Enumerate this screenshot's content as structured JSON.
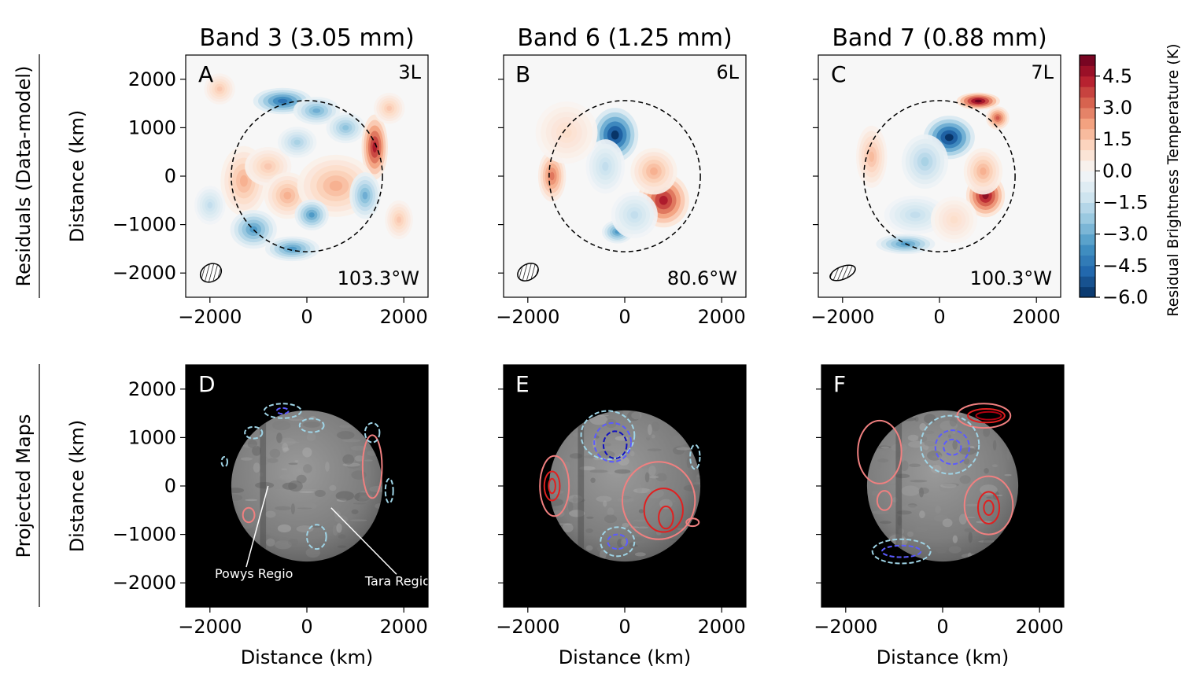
{
  "row_labels": [
    "Residuals (Data-model)",
    "Projected Maps"
  ],
  "colorbar": {
    "label": "Residual Brightness Temperature (K)",
    "ticks": [
      4.5,
      3.0,
      1.5,
      0.0,
      -1.5,
      -3.0,
      -4.5,
      -6.0
    ],
    "tick_labels": [
      "4.5",
      "3.0",
      "1.5",
      "0.0",
      "−1.5",
      "−3.0",
      "−4.5",
      "−6.0"
    ],
    "range": [
      -6.0,
      5.5
    ],
    "colors": [
      "#053061",
      "#2166ac",
      "#4393c3",
      "#92c5de",
      "#d1e5f0",
      "#f7f7f7",
      "#fddbc7",
      "#f4a582",
      "#d6604d",
      "#b2182b",
      "#67001f"
    ]
  },
  "chart_data": [
    {
      "type": "heatmap",
      "panel": "A",
      "title": "Band 3 (3.05 mm)",
      "tag": "3L",
      "longitude": "103.3°W",
      "xlabel": "",
      "ylabel": "Distance (km)",
      "xlim": [
        -2500,
        2500
      ],
      "ylim": [
        -2500,
        2500
      ],
      "xticks": [
        -2000,
        0,
        2000
      ],
      "xtick_labels": [
        "−2000",
        "0",
        "2000"
      ],
      "yticks": [
        2000,
        1000,
        0,
        -1000,
        -2000
      ],
      "ytick_labels": [
        "2000",
        "1000",
        "0",
        "−1000",
        "−2000"
      ],
      "disk_radius_km": 1560,
      "features": [
        {
          "x": -500,
          "y": 1550,
          "amp": -4.5,
          "sx": 380,
          "sy": 170
        },
        {
          "x": 200,
          "y": 1350,
          "amp": -3.0,
          "sx": 300,
          "sy": 180
        },
        {
          "x": 800,
          "y": 1000,
          "amp": -2.5,
          "sx": 250,
          "sy": 200
        },
        {
          "x": 1400,
          "y": 600,
          "amp": 4.5,
          "sx": 170,
          "sy": 420
        },
        {
          "x": -1300,
          "y": -100,
          "amp": 2.0,
          "sx": 300,
          "sy": 450
        },
        {
          "x": -800,
          "y": 200,
          "amp": 1.5,
          "sx": 300,
          "sy": 250
        },
        {
          "x": -400,
          "y": -400,
          "amp": 2.0,
          "sx": 300,
          "sy": 300
        },
        {
          "x": 600,
          "y": -200,
          "amp": 2.0,
          "sx": 500,
          "sy": 400
        },
        {
          "x": 100,
          "y": -800,
          "amp": -3.5,
          "sx": 220,
          "sy": 200
        },
        {
          "x": -1100,
          "y": -1100,
          "amp": -3.5,
          "sx": 300,
          "sy": 250
        },
        {
          "x": -300,
          "y": -1500,
          "amp": -3.5,
          "sx": 350,
          "sy": 160
        },
        {
          "x": 1200,
          "y": -400,
          "amp": -3.0,
          "sx": 200,
          "sy": 300
        },
        {
          "x": -200,
          "y": 700,
          "amp": -2.0,
          "sx": 250,
          "sy": 200
        },
        {
          "x": 1700,
          "y": 1400,
          "amp": 1.5,
          "sx": 200,
          "sy": 200
        },
        {
          "x": -1800,
          "y": 1800,
          "amp": 1.5,
          "sx": 200,
          "sy": 200
        },
        {
          "x": 1900,
          "y": -900,
          "amp": 1.5,
          "sx": 180,
          "sy": 250
        },
        {
          "x": -2000,
          "y": -600,
          "amp": -1.5,
          "sx": 200,
          "sy": 250
        }
      ]
    },
    {
      "type": "heatmap",
      "panel": "B",
      "title": "Band 6 (1.25 mm)",
      "tag": "6L",
      "longitude": "80.6°W",
      "xlabel": "",
      "ylabel": "",
      "xlim": [
        -2500,
        2500
      ],
      "ylim": [
        -2500,
        2500
      ],
      "xticks": [
        -2000,
        0,
        2000
      ],
      "xtick_labels": [
        "−2000",
        "0",
        "2000"
      ],
      "yticks": [
        2000,
        1000,
        0,
        -1000,
        -2000
      ],
      "ytick_labels": [
        "",
        "",
        "",
        "",
        ""
      ],
      "disk_radius_km": 1560,
      "features": [
        {
          "x": -200,
          "y": 850,
          "amp": -6.0,
          "sx": 300,
          "sy": 350
        },
        {
          "x": -400,
          "y": 200,
          "amp": -1.5,
          "sx": 250,
          "sy": 350
        },
        {
          "x": -1500,
          "y": 0,
          "amp": 3.0,
          "sx": 180,
          "sy": 330
        },
        {
          "x": 800,
          "y": -500,
          "amp": 4.5,
          "sx": 330,
          "sy": 350
        },
        {
          "x": 600,
          "y": 100,
          "amp": 2.0,
          "sx": 300,
          "sy": 300
        },
        {
          "x": -150,
          "y": -1150,
          "amp": -3.5,
          "sx": 200,
          "sy": 150
        },
        {
          "x": 200,
          "y": -800,
          "amp": -1.5,
          "sx": 300,
          "sy": 300
        },
        {
          "x": -1200,
          "y": 900,
          "amp": 1.0,
          "sx": 400,
          "sy": 400
        }
      ]
    },
    {
      "type": "heatmap",
      "panel": "C",
      "title": "Band 7 (0.88 mm)",
      "tag": "7L",
      "longitude": "100.3°W",
      "xlabel": "",
      "ylabel": "",
      "xlim": [
        -2500,
        2500
      ],
      "ylim": [
        -2500,
        2500
      ],
      "xticks": [
        -2000,
        0,
        2000
      ],
      "xtick_labels": [
        "−2000",
        "0",
        "2000"
      ],
      "yticks": [
        2000,
        1000,
        0,
        -1000,
        -2000
      ],
      "ytick_labels": [
        "",
        "",
        "",
        "",
        ""
      ],
      "disk_radius_km": 1560,
      "features": [
        {
          "x": 200,
          "y": 800,
          "amp": -6.0,
          "sx": 330,
          "sy": 280
        },
        {
          "x": -300,
          "y": 300,
          "amp": -2.0,
          "sx": 300,
          "sy": 350
        },
        {
          "x": 800,
          "y": 1550,
          "amp": 5.5,
          "sx": 280,
          "sy": 110
        },
        {
          "x": 1200,
          "y": 1200,
          "amp": 3.5,
          "sx": 150,
          "sy": 150
        },
        {
          "x": 950,
          "y": -400,
          "amp": 5.0,
          "sx": 250,
          "sy": 280
        },
        {
          "x": 900,
          "y": 100,
          "amp": 2.0,
          "sx": 250,
          "sy": 300
        },
        {
          "x": -1400,
          "y": 400,
          "amp": 1.8,
          "sx": 200,
          "sy": 400
        },
        {
          "x": -700,
          "y": -1400,
          "amp": -3.5,
          "sx": 380,
          "sy": 130
        },
        {
          "x": -500,
          "y": -800,
          "amp": -1.5,
          "sx": 400,
          "sy": 250
        },
        {
          "x": 300,
          "y": -900,
          "amp": 1.0,
          "sx": 300,
          "sy": 300
        }
      ]
    },
    {
      "type": "heatmap",
      "panel": "D",
      "xlabel": "Distance (km)",
      "ylabel": "Distance (km)",
      "xlim": [
        -2500,
        2500
      ],
      "ylim": [
        -2500,
        2500
      ],
      "xticks": [
        -2000,
        0,
        2000
      ],
      "xtick_labels": [
        "−2000",
        "0",
        "2000"
      ],
      "yticks": [
        2000,
        1000,
        0,
        -1000,
        -2000
      ],
      "ytick_labels": [
        "2000",
        "1000",
        "0",
        "−1000",
        "−2000"
      ],
      "disk_radius_km": 1560,
      "contours": [
        {
          "x": -500,
          "y": 1550,
          "rx": 380,
          "ry": 150,
          "color": "lightblue"
        },
        {
          "x": -1100,
          "y": 1100,
          "rx": 180,
          "ry": 120,
          "color": "lightblue"
        },
        {
          "x": 100,
          "y": 1250,
          "rx": 250,
          "ry": 140,
          "color": "lightblue"
        },
        {
          "x": 1350,
          "y": 400,
          "rx": 200,
          "ry": 650,
          "color": "salmon"
        },
        {
          "x": 1350,
          "y": 1100,
          "rx": 150,
          "ry": 200,
          "color": "lightblue"
        },
        {
          "x": -1200,
          "y": -600,
          "rx": 120,
          "ry": 150,
          "color": "salmon"
        },
        {
          "x": 200,
          "y": -1050,
          "rx": 200,
          "ry": 250,
          "color": "lightblue"
        },
        {
          "x": -1700,
          "y": 500,
          "rx": 60,
          "ry": 100,
          "color": "lightblue"
        },
        {
          "x": 1700,
          "y": -100,
          "rx": 80,
          "ry": 250,
          "color": "lightblue"
        },
        {
          "x": -500,
          "y": 1550,
          "rx": 120,
          "ry": 60,
          "color": "mediumblue"
        }
      ],
      "annotations": [
        {
          "text": "Powys Regio",
          "x": -1900,
          "y": -1900,
          "target_x": -800,
          "target_y": 0
        },
        {
          "text": "Tara Regio",
          "x": 1200,
          "y": -2050,
          "target_x": 500,
          "target_y": -450
        }
      ]
    },
    {
      "type": "heatmap",
      "panel": "E",
      "xlabel": "Distance (km)",
      "ylabel": "",
      "xlim": [
        -2500,
        2500
      ],
      "ylim": [
        -2500,
        2500
      ],
      "xticks": [
        -2000,
        0,
        2000
      ],
      "xtick_labels": [
        "−2000",
        "0",
        "2000"
      ],
      "yticks": [
        2000,
        1000,
        0,
        -1000,
        -2000
      ],
      "ytick_labels": [
        "",
        "",
        "",
        "",
        ""
      ],
      "disk_radius_km": 1560,
      "contours": [
        {
          "x": -350,
          "y": 1050,
          "rx": 550,
          "ry": 500,
          "color": "lightblue"
        },
        {
          "x": -250,
          "y": 900,
          "rx": 380,
          "ry": 400,
          "color": "mediumblue"
        },
        {
          "x": -200,
          "y": 850,
          "rx": 240,
          "ry": 280,
          "color": "darkblue"
        },
        {
          "x": -1450,
          "y": 0,
          "rx": 300,
          "ry": 620,
          "color": "salmon"
        },
        {
          "x": -1500,
          "y": 0,
          "rx": 160,
          "ry": 300,
          "color": "red"
        },
        {
          "x": -1500,
          "y": 0,
          "rx": 70,
          "ry": 150,
          "color": "red"
        },
        {
          "x": 700,
          "y": -300,
          "rx": 750,
          "ry": 800,
          "color": "salmon"
        },
        {
          "x": 800,
          "y": -500,
          "rx": 400,
          "ry": 450,
          "color": "red"
        },
        {
          "x": 850,
          "y": -650,
          "rx": 150,
          "ry": 230,
          "color": "red"
        },
        {
          "x": -150,
          "y": -1150,
          "rx": 350,
          "ry": 300,
          "color": "lightblue"
        },
        {
          "x": -150,
          "y": -1150,
          "rx": 200,
          "ry": 150,
          "color": "mediumblue"
        },
        {
          "x": 1450,
          "y": 600,
          "rx": 100,
          "ry": 250,
          "color": "lightblue"
        },
        {
          "x": 1400,
          "y": -750,
          "rx": 130,
          "ry": 80,
          "color": "salmon"
        }
      ]
    },
    {
      "type": "heatmap",
      "panel": "F",
      "xlabel": "Distance (km)",
      "ylabel": "",
      "xlim": [
        -2500,
        2500
      ],
      "ylim": [
        -2500,
        2500
      ],
      "xticks": [
        -2000,
        0,
        2000
      ],
      "xtick_labels": [
        "−2000",
        "0",
        "2000"
      ],
      "yticks": [
        2000,
        1000,
        0,
        -1000,
        -2000
      ],
      "ytick_labels": [
        "",
        "",
        "",
        "",
        ""
      ],
      "disk_radius_km": 1560,
      "contours": [
        {
          "x": 850,
          "y": 1450,
          "rx": 550,
          "ry": 250,
          "color": "salmon"
        },
        {
          "x": 900,
          "y": 1450,
          "rx": 380,
          "ry": 140,
          "color": "red"
        },
        {
          "x": 950,
          "y": 1450,
          "rx": 260,
          "ry": 80,
          "color": "darkred"
        },
        {
          "x": 150,
          "y": 850,
          "rx": 600,
          "ry": 600,
          "color": "lightblue"
        },
        {
          "x": 200,
          "y": 800,
          "rx": 350,
          "ry": 350,
          "color": "mediumblue"
        },
        {
          "x": 200,
          "y": 800,
          "rx": 180,
          "ry": 160,
          "color": "mediumblue"
        },
        {
          "x": 950,
          "y": -400,
          "rx": 500,
          "ry": 600,
          "color": "salmon"
        },
        {
          "x": 950,
          "y": -450,
          "rx": 220,
          "ry": 330,
          "color": "red"
        },
        {
          "x": 950,
          "y": -450,
          "rx": 100,
          "ry": 150,
          "color": "red"
        },
        {
          "x": -1300,
          "y": 700,
          "rx": 450,
          "ry": 650,
          "color": "salmon"
        },
        {
          "x": -850,
          "y": -1350,
          "rx": 600,
          "ry": 250,
          "color": "lightblue"
        },
        {
          "x": -850,
          "y": -1350,
          "rx": 400,
          "ry": 120,
          "color": "mediumblue"
        },
        {
          "x": -1200,
          "y": -300,
          "rx": 150,
          "ry": 200,
          "color": "salmon"
        }
      ]
    }
  ]
}
